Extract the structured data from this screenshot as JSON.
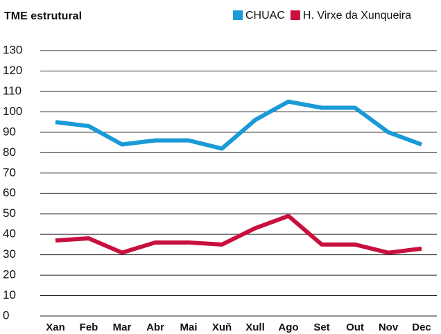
{
  "chart_data": {
    "type": "line",
    "title": "TME estrutural",
    "categories": [
      "Xan",
      "Feb",
      "Mar",
      "Abr",
      "Mai",
      "Xuñ",
      "Xull",
      "Ago",
      "Set",
      "Out",
      "Nov",
      "Dec"
    ],
    "series": [
      {
        "name": "CHUAC",
        "color": "#1a9ad6",
        "values": [
          95,
          93,
          84,
          86,
          86,
          82,
          96,
          105,
          102,
          102,
          90,
          84
        ]
      },
      {
        "name": "H. Virxe da Xunqueira",
        "color": "#c8103e",
        "values": [
          37,
          38,
          31,
          36,
          36,
          35,
          43,
          49,
          35,
          35,
          31,
          33
        ]
      }
    ],
    "ylim": [
      0,
      130
    ],
    "yticks": [
      0,
      10,
      20,
      30,
      40,
      50,
      60,
      70,
      80,
      90,
      100,
      110,
      120,
      130
    ],
    "grid": true
  }
}
